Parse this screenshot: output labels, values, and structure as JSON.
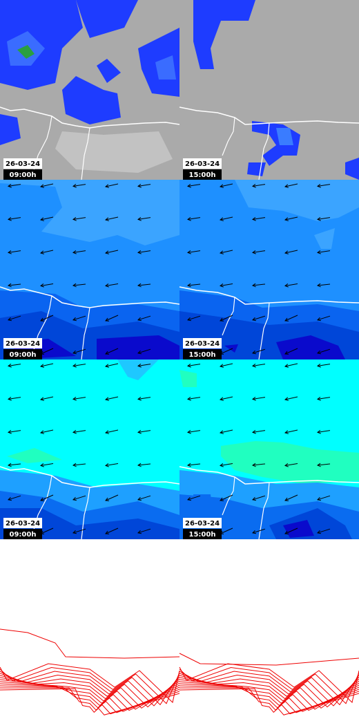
{
  "panels": [
    {
      "date": "26-03-24",
      "time": "09:00h"
    },
    {
      "date": "26-03-24",
      "time": "15:00h"
    },
    {
      "date": "26-03-24",
      "time": "09:00h"
    },
    {
      "date": "26-03-24",
      "time": "15:00h"
    },
    {
      "date": "26-03-24",
      "time": "09:00h"
    },
    {
      "date": "26-03-24",
      "time": "15:00h"
    }
  ]
}
